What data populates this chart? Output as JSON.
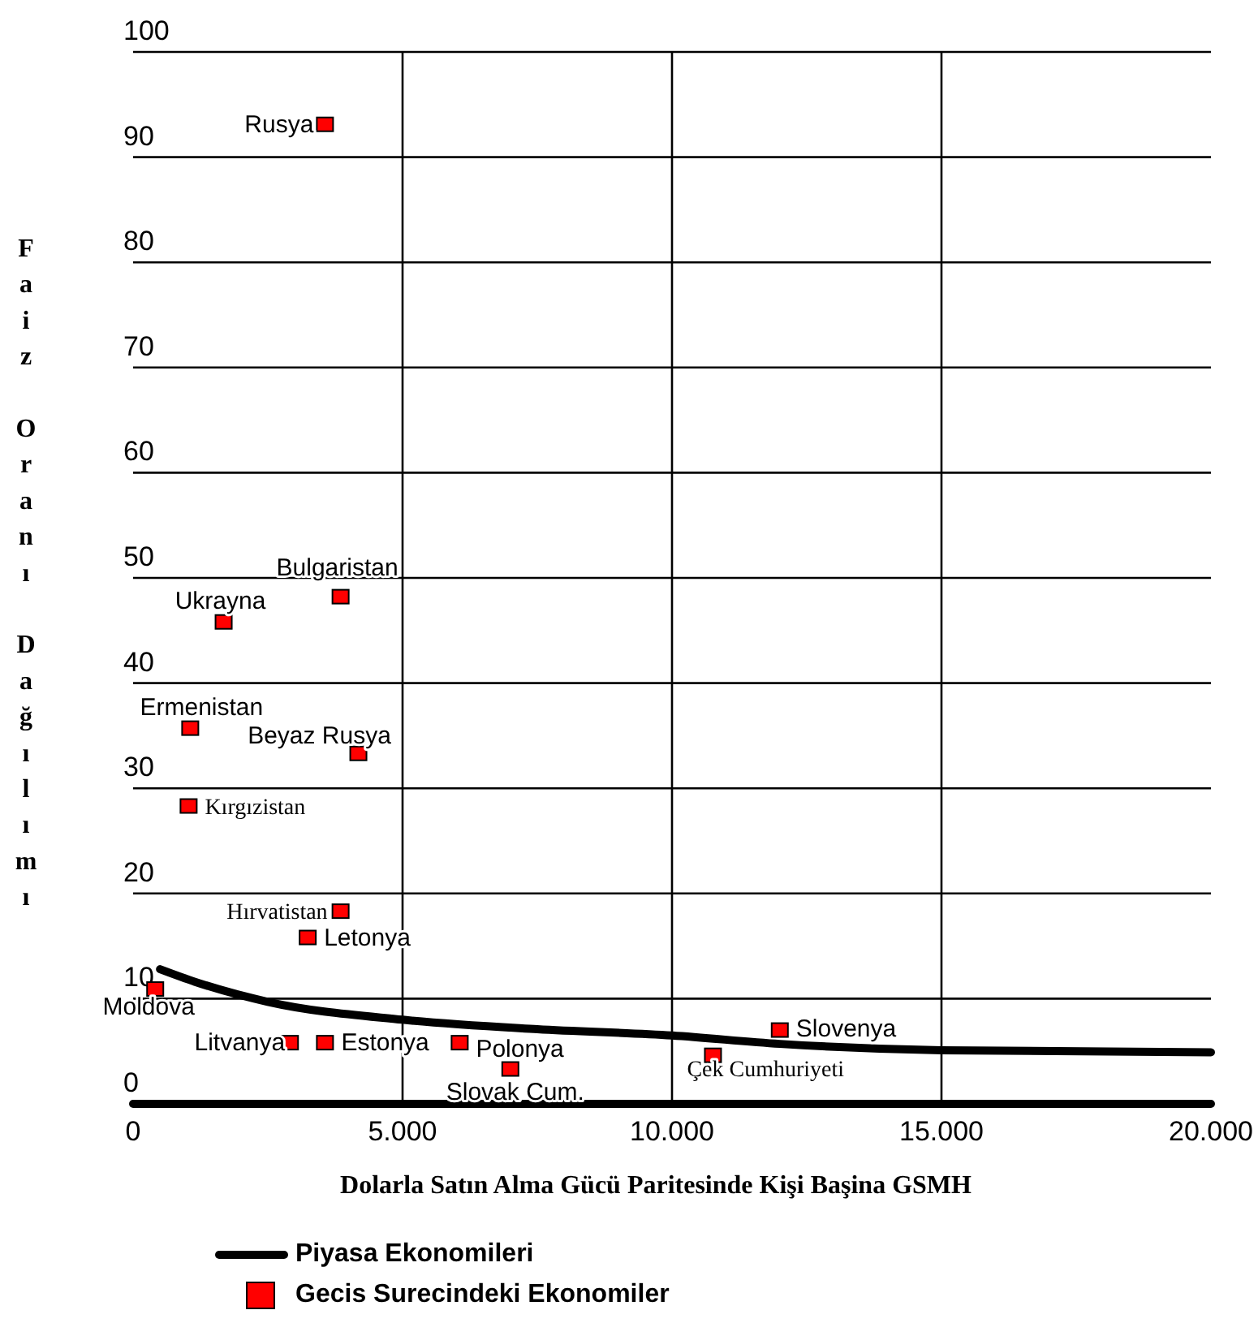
{
  "chart_data": {
    "type": "scatter",
    "xlabel": "Dolarla Satın Alma Gücü Paritesinde Kişi Başina GSMH",
    "ylabel": "Faiz Oranı Dağılımı",
    "xlim": [
      0,
      20000
    ],
    "ylim": [
      0,
      100
    ],
    "xticks": [
      0,
      {
        "value": 5000,
        "label": "5.000"
      },
      {
        "value": 10000,
        "label": "10.000"
      },
      {
        "value": 15000,
        "label": "15.000"
      },
      {
        "value": 20000,
        "label": "20.000"
      }
    ],
    "yticks": [
      0,
      10,
      20,
      30,
      40,
      50,
      60,
      70,
      80,
      90,
      100
    ],
    "grid": true,
    "legend": "bottom",
    "series": [
      {
        "name": "Piyasa Ekonomileri",
        "type": "line",
        "color": "#000000",
        "marker": "none",
        "line_style": "solid",
        "x": [
          500,
          1150,
          2500,
          5000,
          7500,
          10000,
          12000,
          15000,
          20000
        ],
        "values": [
          12.8,
          11.6,
          9.7,
          8.0,
          7.1,
          6.5,
          5.7,
          5.1,
          4.9
        ]
      },
      {
        "name": "Gecis Surecindeki Ekonomiler",
        "type": "scatter",
        "color": "#ff0000",
        "marker": "square",
        "x": [
          3560,
          3850,
          1680,
          1060,
          4180,
          1030,
          3850,
          3240,
          410,
          2910,
          3560,
          6060,
          7000,
          10760,
          12000
        ],
        "values": [
          93,
          48.1,
          45.7,
          35.6,
          33.2,
          28.2,
          18.2,
          15.7,
          10.8,
          5.7,
          5.7,
          5.7,
          3.2,
          4.5,
          6.9
        ]
      }
    ],
    "annotations": [
      {
        "text": "Rusya",
        "x": 3560,
        "y": 93
      },
      {
        "text": "Bulgaristan",
        "x": 3850,
        "y": 48.1
      },
      {
        "text": "Ukrayna",
        "x": 1680,
        "y": 45.7
      },
      {
        "text": "Ermenistan",
        "x": 1060,
        "y": 35.6
      },
      {
        "text": "Beyaz Rusya",
        "x": 4180,
        "y": 33.2
      },
      {
        "text": "Kırgızistan",
        "x": 1030,
        "y": 28.2
      },
      {
        "text": "Hırvatistan",
        "x": 3850,
        "y": 18.2
      },
      {
        "text": "Letonya",
        "x": 3240,
        "y": 15.7
      },
      {
        "text": "Moldova",
        "x": 410,
        "y": 10.8
      },
      {
        "text": "Litvanya",
        "x": 2910,
        "y": 5.7
      },
      {
        "text": "Estonya",
        "x": 3560,
        "y": 5.7
      },
      {
        "text": "Polonya",
        "x": 6060,
        "y": 5.7
      },
      {
        "text": "Slovak Cum.",
        "x": 7000,
        "y": 3.2
      },
      {
        "text": "Çek Cumhuriyeti",
        "x": 10760,
        "y": 4.5
      },
      {
        "text": "Slovenya",
        "x": 12000,
        "y": 6.9
      }
    ]
  }
}
